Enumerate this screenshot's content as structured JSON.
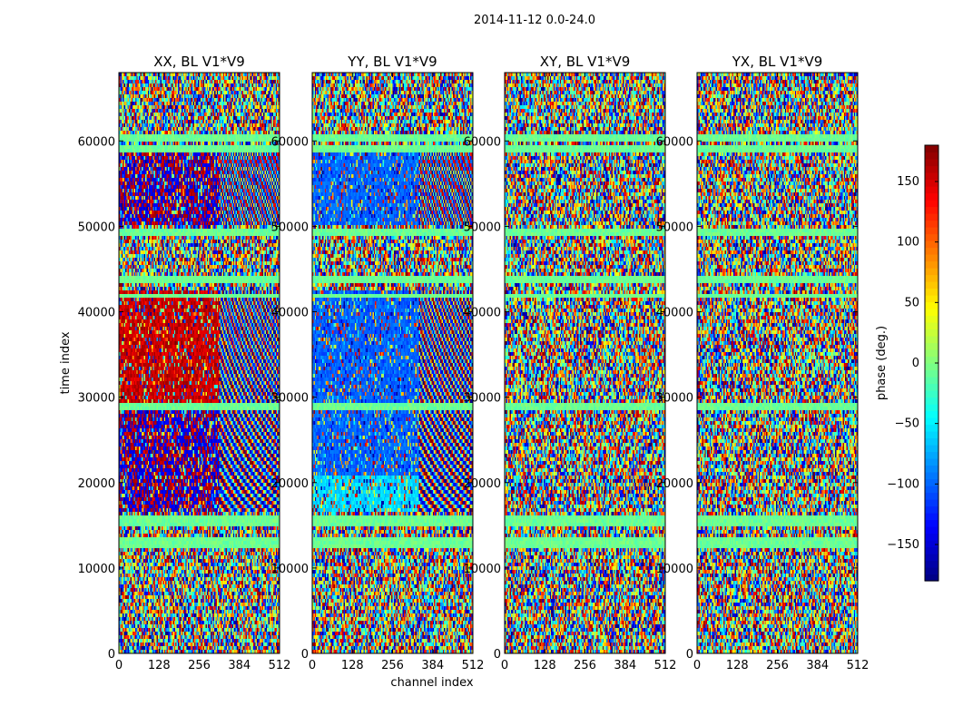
{
  "chart_data": {
    "type": "heatmap",
    "suptitle": "2014-11-12 0.0-24.0",
    "xlabel": "channel index",
    "ylabel": "time index",
    "colorbar_label": "phase (deg.)",
    "x_range": [
      0,
      512
    ],
    "y_range": [
      0,
      68000
    ],
    "x_ticks": [
      0,
      128,
      256,
      384,
      512
    ],
    "y_ticks": [
      0,
      10000,
      20000,
      30000,
      40000,
      50000,
      60000
    ],
    "color_range": [
      -180,
      180
    ],
    "colorbar_ticks": [
      -150,
      -100,
      -50,
      0,
      50,
      100,
      150
    ],
    "colormap": "jet",
    "panels": [
      {
        "title": "XX, BL V1*V9",
        "mode": "xx"
      },
      {
        "title": "YY, BL V1*V9",
        "mode": "yy"
      },
      {
        "title": "XY, BL V1*V9",
        "mode": "noise"
      },
      {
        "title": "YX, BL V1*V9",
        "mode": "noise"
      }
    ]
  }
}
